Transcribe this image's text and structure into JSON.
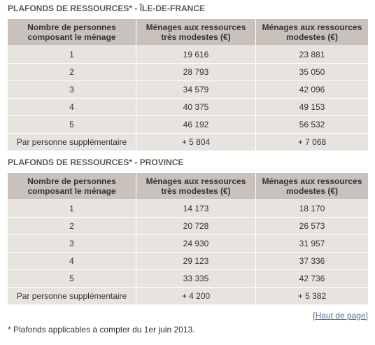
{
  "sections": [
    {
      "title": "PLAFONDS DE RESSOURCES* - ÎLE-DE-FRANCE",
      "header": [
        [
          "Nombre de personnes",
          "composant le ménage"
        ],
        [
          "Ménages aux ressources",
          "très modestes (€)"
        ],
        [
          "Ménages aux ressources",
          "modestes (€)"
        ]
      ],
      "rows": [
        [
          "1",
          "19 616",
          "23 881"
        ],
        [
          "2",
          "28 793",
          "35 050"
        ],
        [
          "3",
          "34 579",
          "42 096"
        ],
        [
          "4",
          "40 375",
          "49 153"
        ],
        [
          "5",
          "46 192",
          "56 532"
        ],
        [
          "Par personne supplémentaire",
          "+ 5 804",
          "+ 7 068"
        ]
      ]
    },
    {
      "title": "PLAFONDS DE RESSOURCES* - PROVINCE",
      "header": [
        [
          "Nombre de personnes",
          "composant le ménage"
        ],
        [
          "Ménages aux ressources",
          "très modestes (€)"
        ],
        [
          "Ménages aux ressources",
          "modestes (€)"
        ]
      ],
      "rows": [
        [
          "1",
          "14 173",
          "18 170"
        ],
        [
          "2",
          "20 728",
          "26 573"
        ],
        [
          "3",
          "24 930",
          "31 957"
        ],
        [
          "4",
          "29 123",
          "37 336"
        ],
        [
          "5",
          "33 335",
          "42 736"
        ],
        [
          "Par personne supplémentaire",
          "+ 4 200",
          "+ 5 382"
        ]
      ]
    }
  ],
  "link": "[Haut de page]",
  "footnote": "* Plafonds applicables à compter du 1er juin 2013."
}
